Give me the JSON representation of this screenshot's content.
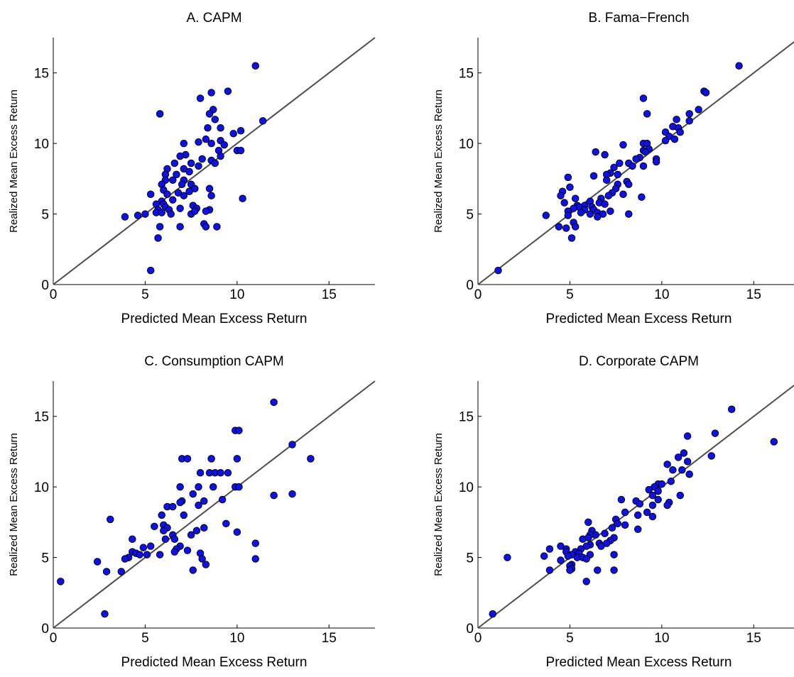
{
  "chart_data": [
    {
      "type": "scatter",
      "title": "A. CAPM",
      "xlabel": "Predicted Mean Excess Return",
      "ylabel": "Realized Mean Excess Return",
      "xlim": [
        0,
        17.5
      ],
      "ylim": [
        0,
        17.5
      ],
      "xticks": [
        "0",
        "5",
        "10",
        "15"
      ],
      "yticks": [
        "0",
        "5",
        "10",
        "15"
      ],
      "marker_color": "#1010e0",
      "line_color": "#4d4d4d",
      "reference_line": "y = x",
      "points": [
        [
          11.0,
          15.5
        ],
        [
          9.5,
          13.7
        ],
        [
          8.6,
          13.6
        ],
        [
          8.0,
          13.2
        ],
        [
          8.7,
          12.4
        ],
        [
          8.5,
          12.1
        ],
        [
          5.8,
          12.1
        ],
        [
          8.8,
          11.7
        ],
        [
          11.4,
          11.6
        ],
        [
          8.4,
          11.1
        ],
        [
          9.1,
          11.1
        ],
        [
          10.2,
          10.9
        ],
        [
          9.8,
          10.7
        ],
        [
          8.3,
          10.3
        ],
        [
          9.1,
          10.2
        ],
        [
          7.9,
          10.1
        ],
        [
          8.6,
          10.0
        ],
        [
          7.1,
          10.0
        ],
        [
          9.3,
          9.9
        ],
        [
          9.0,
          9.5
        ],
        [
          10.0,
          9.5
        ],
        [
          10.2,
          9.5
        ],
        [
          9.1,
          9.1
        ],
        [
          7.2,
          9.2
        ],
        [
          6.9,
          9.1
        ],
        [
          8.1,
          8.9
        ],
        [
          8.6,
          8.8
        ],
        [
          7.5,
          8.6
        ],
        [
          6.6,
          8.6
        ],
        [
          8.8,
          8.6
        ],
        [
          7.9,
          8.4
        ],
        [
          7.1,
          8.2
        ],
        [
          6.2,
          8.2
        ],
        [
          7.4,
          8.0
        ],
        [
          6.1,
          7.8
        ],
        [
          6.7,
          7.8
        ],
        [
          6.1,
          7.4
        ],
        [
          5.9,
          7.1
        ],
        [
          7.1,
          7.4
        ],
        [
          6.5,
          7.4
        ],
        [
          7.0,
          7.1
        ],
        [
          7.5,
          7.1
        ],
        [
          7.7,
          6.8
        ],
        [
          8.5,
          6.8
        ],
        [
          6.0,
          6.7
        ],
        [
          7.4,
          6.6
        ],
        [
          6.8,
          6.5
        ],
        [
          5.3,
          6.4
        ],
        [
          6.2,
          6.4
        ],
        [
          7.1,
          6.3
        ],
        [
          8.6,
          6.3
        ],
        [
          10.3,
          6.1
        ],
        [
          6.5,
          6.0
        ],
        [
          5.9,
          5.9
        ],
        [
          6.0,
          5.7
        ],
        [
          5.6,
          5.7
        ],
        [
          7.6,
          5.6
        ],
        [
          6.1,
          5.5
        ],
        [
          7.8,
          5.4
        ],
        [
          6.9,
          5.4
        ],
        [
          6.3,
          5.3
        ],
        [
          5.7,
          5.3
        ],
        [
          8.5,
          5.3
        ],
        [
          8.3,
          5.2
        ],
        [
          5.0,
          5.0
        ],
        [
          6.4,
          5.0
        ],
        [
          7.5,
          5.0
        ],
        [
          5.6,
          5.1
        ],
        [
          5.9,
          5.1
        ],
        [
          4.6,
          4.9
        ],
        [
          3.9,
          4.8
        ],
        [
          7.7,
          5.2
        ],
        [
          8.2,
          4.3
        ],
        [
          8.3,
          4.1
        ],
        [
          8.9,
          4.1
        ],
        [
          6.9,
          4.1
        ],
        [
          5.8,
          4.1
        ],
        [
          5.7,
          3.3
        ],
        [
          5.3,
          1.0
        ]
      ]
    },
    {
      "type": "scatter",
      "title": "B. Fama−French",
      "xlabel": "Predicted Mean Excess Return",
      "ylabel": "Realized Mean Excess Return",
      "xlim": [
        0,
        17.5
      ],
      "ylim": [
        0,
        17.5
      ],
      "xticks": [
        "0",
        "5",
        "10",
        "15"
      ],
      "yticks": [
        "0",
        "5",
        "10",
        "15"
      ],
      "marker_color": "#1010e0",
      "line_color": "#4d4d4d",
      "reference_line": "y = x",
      "points": [
        [
          14.2,
          15.5
        ],
        [
          12.3,
          13.7
        ],
        [
          12.4,
          13.6
        ],
        [
          9.0,
          13.2
        ],
        [
          12.0,
          12.4
        ],
        [
          11.5,
          12.1
        ],
        [
          9.2,
          12.1
        ],
        [
          10.8,
          11.7
        ],
        [
          11.5,
          11.6
        ],
        [
          10.6,
          11.2
        ],
        [
          10.9,
          11.1
        ],
        [
          11.0,
          10.8
        ],
        [
          10.2,
          10.8
        ],
        [
          10.4,
          10.5
        ],
        [
          10.7,
          10.3
        ],
        [
          10.2,
          10.2
        ],
        [
          9.0,
          10.0
        ],
        [
          9.2,
          10.0
        ],
        [
          7.9,
          9.9
        ],
        [
          9.3,
          9.6
        ],
        [
          9.0,
          9.5
        ],
        [
          9.1,
          9.4
        ],
        [
          6.4,
          9.4
        ],
        [
          6.9,
          9.2
        ],
        [
          8.8,
          9.0
        ],
        [
          9.7,
          8.9
        ],
        [
          8.6,
          8.9
        ],
        [
          8.2,
          8.6
        ],
        [
          9.7,
          8.7
        ],
        [
          7.7,
          8.6
        ],
        [
          8.4,
          8.4
        ],
        [
          7.4,
          8.3
        ],
        [
          9.0,
          8.4
        ],
        [
          7.2,
          7.9
        ],
        [
          7.6,
          7.8
        ],
        [
          7.0,
          7.8
        ],
        [
          6.3,
          7.7
        ],
        [
          4.9,
          7.6
        ],
        [
          7.0,
          7.4
        ],
        [
          8.1,
          7.3
        ],
        [
          7.6,
          7.1
        ],
        [
          8.2,
          7.1
        ],
        [
          5.0,
          6.9
        ],
        [
          7.5,
          6.8
        ],
        [
          7.3,
          6.5
        ],
        [
          4.6,
          6.6
        ],
        [
          7.9,
          6.4
        ],
        [
          7.1,
          6.3
        ],
        [
          4.5,
          6.3
        ],
        [
          6.7,
          6.1
        ],
        [
          8.9,
          6.2
        ],
        [
          5.3,
          6.1
        ],
        [
          6.1,
          5.9
        ],
        [
          4.7,
          5.8
        ],
        [
          6.6,
          5.8
        ],
        [
          6.9,
          5.7
        ],
        [
          5.4,
          5.6
        ],
        [
          5.8,
          5.6
        ],
        [
          5.5,
          5.5
        ],
        [
          6.2,
          5.5
        ],
        [
          5.2,
          5.4
        ],
        [
          5.8,
          5.3
        ],
        [
          6.3,
          5.3
        ],
        [
          7.2,
          5.2
        ],
        [
          4.9,
          5.2
        ],
        [
          5.6,
          5.1
        ],
        [
          6.5,
          5.1
        ],
        [
          6.1,
          5.0
        ],
        [
          6.8,
          5.0
        ],
        [
          8.2,
          5.0
        ],
        [
          3.7,
          4.9
        ],
        [
          6.5,
          4.8
        ],
        [
          4.9,
          4.9
        ],
        [
          5.2,
          4.4
        ],
        [
          5.3,
          4.1
        ],
        [
          4.4,
          4.1
        ],
        [
          4.8,
          4.0
        ],
        [
          5.1,
          3.3
        ],
        [
          1.1,
          1.0
        ]
      ]
    },
    {
      "type": "scatter",
      "title": "C. Consumption CAPM",
      "xlabel": "Predicted Mean Excess Return",
      "ylabel": "Realized Mean Excess Return",
      "xlim": [
        0,
        17.5
      ],
      "ylim": [
        0,
        17.5
      ],
      "xticks": [
        "0",
        "5",
        "10",
        "15"
      ],
      "yticks": [
        "0",
        "5",
        "10",
        "15"
      ],
      "marker_color": "#1010e0",
      "line_color": "#4d4d4d",
      "reference_line": "y = x",
      "points": [
        [
          12.0,
          16.0
        ],
        [
          9.9,
          14.0
        ],
        [
          10.1,
          14.0
        ],
        [
          13.0,
          13.0
        ],
        [
          7.0,
          12.0
        ],
        [
          7.3,
          12.0
        ],
        [
          8.6,
          12.0
        ],
        [
          14.0,
          12.0
        ],
        [
          10.0,
          12.0
        ],
        [
          8.5,
          11.0
        ],
        [
          8.8,
          11.0
        ],
        [
          9.1,
          11.0
        ],
        [
          9.5,
          11.0
        ],
        [
          8.0,
          11.0
        ],
        [
          9.9,
          10.0
        ],
        [
          10.1,
          10.0
        ],
        [
          6.9,
          10.0
        ],
        [
          7.9,
          10.0
        ],
        [
          8.7,
          10.0
        ],
        [
          7.6,
          9.5
        ],
        [
          13.0,
          9.5
        ],
        [
          12.0,
          9.4
        ],
        [
          9.2,
          9.1
        ],
        [
          8.2,
          9.0
        ],
        [
          7.0,
          9.0
        ],
        [
          6.9,
          8.9
        ],
        [
          7.9,
          8.7
        ],
        [
          6.2,
          8.6
        ],
        [
          6.5,
          8.6
        ],
        [
          5.9,
          8.0
        ],
        [
          7.1,
          8.0
        ],
        [
          3.1,
          7.7
        ],
        [
          6.0,
          7.3
        ],
        [
          5.5,
          7.2
        ],
        [
          6.2,
          7.1
        ],
        [
          8.2,
          7.1
        ],
        [
          9.4,
          7.4
        ],
        [
          6.0,
          6.9
        ],
        [
          10.0,
          6.8
        ],
        [
          7.8,
          6.9
        ],
        [
          6.5,
          6.6
        ],
        [
          6.6,
          6.3
        ],
        [
          7.5,
          6.6
        ],
        [
          6.1,
          6.3
        ],
        [
          4.3,
          6.3
        ],
        [
          11.0,
          6.0
        ],
        [
          6.9,
          5.8
        ],
        [
          4.9,
          5.7
        ],
        [
          5.3,
          5.8
        ],
        [
          6.7,
          5.6
        ],
        [
          7.3,
          5.5
        ],
        [
          4.3,
          5.4
        ],
        [
          6.6,
          5.4
        ],
        [
          4.5,
          5.3
        ],
        [
          8.0,
          5.3
        ],
        [
          5.8,
          5.2
        ],
        [
          4.7,
          5.2
        ],
        [
          4.1,
          5.0
        ],
        [
          3.9,
          4.9
        ],
        [
          8.1,
          4.9
        ],
        [
          5.1,
          5.2
        ],
        [
          11.0,
          4.9
        ],
        [
          2.4,
          4.7
        ],
        [
          8.3,
          4.5
        ],
        [
          7.6,
          4.1
        ],
        [
          3.7,
          4.0
        ],
        [
          2.9,
          4.0
        ],
        [
          0.4,
          3.3
        ],
        [
          2.8,
          1.0
        ]
      ]
    },
    {
      "type": "scatter",
      "title": "D. Corporate CAPM",
      "xlabel": "Predicted Mean Excess Return",
      "ylabel": "Realized Mean Excess Return",
      "xlim": [
        0,
        17.5
      ],
      "ylim": [
        0,
        17.5
      ],
      "xticks": [
        "0",
        "5",
        "10",
        "15"
      ],
      "yticks": [
        "0",
        "5",
        "10",
        "15"
      ],
      "marker_color": "#1010e0",
      "line_color": "#4d4d4d",
      "reference_line": "y = x",
      "points": [
        [
          13.8,
          15.5
        ],
        [
          11.4,
          13.6
        ],
        [
          12.9,
          13.8
        ],
        [
          16.1,
          13.2
        ],
        [
          11.2,
          12.4
        ],
        [
          10.9,
          12.1
        ],
        [
          12.7,
          12.2
        ],
        [
          11.4,
          11.8
        ],
        [
          10.3,
          11.6
        ],
        [
          10.6,
          11.2
        ],
        [
          11.1,
          11.2
        ],
        [
          11.5,
          10.9
        ],
        [
          10.5,
          10.4
        ],
        [
          9.8,
          10.2
        ],
        [
          10.0,
          10.2
        ],
        [
          9.6,
          10.0
        ],
        [
          9.3,
          9.8
        ],
        [
          9.8,
          9.7
        ],
        [
          11.0,
          9.4
        ],
        [
          9.5,
          9.4
        ],
        [
          9.8,
          9.1
        ],
        [
          7.8,
          9.1
        ],
        [
          8.6,
          9.0
        ],
        [
          8.8,
          8.8
        ],
        [
          10.4,
          8.9
        ],
        [
          9.5,
          8.7
        ],
        [
          10.3,
          8.7
        ],
        [
          8.0,
          8.2
        ],
        [
          9.2,
          8.2
        ],
        [
          8.7,
          8.0
        ],
        [
          9.5,
          7.9
        ],
        [
          7.5,
          7.7
        ],
        [
          8.0,
          7.3
        ],
        [
          7.6,
          7.4
        ],
        [
          6.0,
          7.5
        ],
        [
          8.7,
          7.0
        ],
        [
          7.3,
          7.1
        ],
        [
          6.2,
          6.9
        ],
        [
          6.4,
          6.6
        ],
        [
          6.9,
          6.7
        ],
        [
          6.1,
          6.6
        ],
        [
          6.0,
          6.4
        ],
        [
          5.7,
          6.3
        ],
        [
          7.4,
          6.4
        ],
        [
          7.2,
          6.2
        ],
        [
          7.0,
          6.0
        ],
        [
          6.6,
          6.0
        ],
        [
          6.1,
          5.9
        ],
        [
          4.5,
          5.8
        ],
        [
          3.9,
          5.6
        ],
        [
          4.8,
          5.6
        ],
        [
          5.9,
          5.8
        ],
        [
          6.7,
          5.8
        ],
        [
          5.6,
          5.6
        ],
        [
          4.8,
          5.4
        ],
        [
          5.3,
          5.4
        ],
        [
          5.5,
          5.3
        ],
        [
          5.1,
          5.2
        ],
        [
          7.4,
          5.2
        ],
        [
          6.1,
          5.2
        ],
        [
          3.6,
          5.1
        ],
        [
          4.9,
          5.1
        ],
        [
          5.4,
          5.0
        ],
        [
          5.7,
          5.0
        ],
        [
          5.9,
          4.9
        ],
        [
          1.6,
          5.0
        ],
        [
          4.5,
          4.8
        ],
        [
          5.1,
          4.5
        ],
        [
          5.0,
          4.4
        ],
        [
          5.1,
          4.2
        ],
        [
          5.0,
          4.1
        ],
        [
          3.9,
          4.1
        ],
        [
          6.5,
          4.1
        ],
        [
          7.4,
          4.1
        ],
        [
          5.9,
          3.3
        ],
        [
          0.8,
          1.0
        ]
      ]
    }
  ]
}
